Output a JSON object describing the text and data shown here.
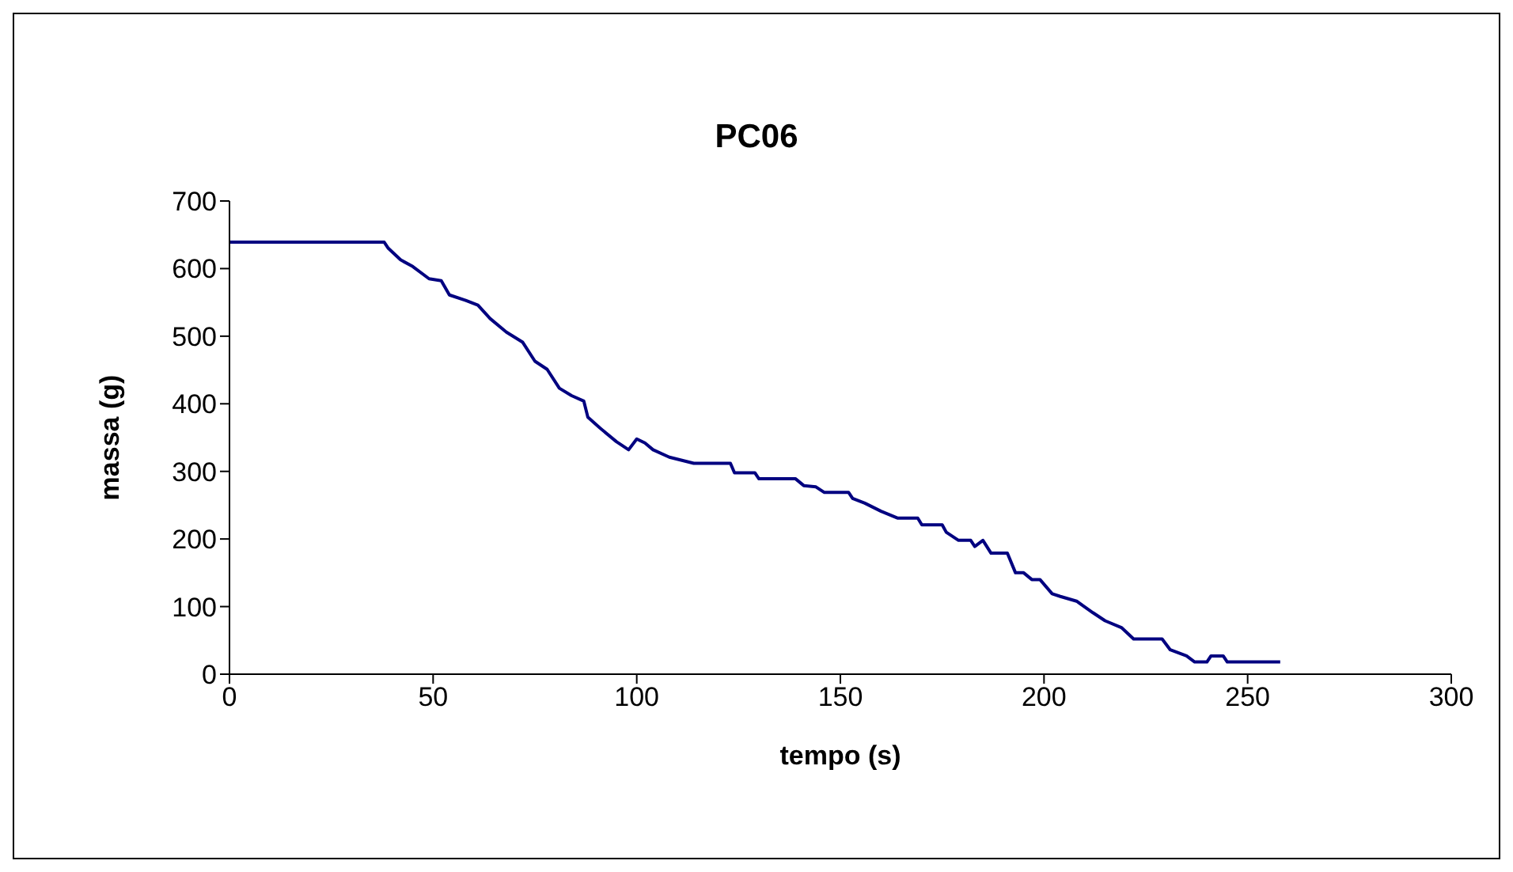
{
  "chart_data": {
    "type": "line",
    "title": "PC06",
    "xlabel": "tempo (s)",
    "ylabel": "massa (g)",
    "x": [
      0,
      38,
      39,
      42,
      45,
      49,
      52,
      54,
      58,
      61,
      64,
      68,
      72,
      75,
      78,
      81,
      84,
      87,
      88,
      91,
      95,
      98,
      100,
      102,
      104,
      108,
      114,
      123,
      124,
      129,
      130,
      139,
      141,
      144,
      146,
      152,
      153,
      156,
      160,
      164,
      169,
      170,
      175,
      176,
      179,
      182,
      183,
      185,
      187,
      191,
      193,
      195,
      197,
      199,
      202,
      204,
      208,
      212,
      215,
      219,
      222,
      229,
      231,
      235,
      237,
      240,
      241,
      244,
      245,
      258
    ],
    "series": [
      {
        "color": "#000080",
        "values": [
          639,
          639,
          630,
          613,
          603,
          585,
          582,
          561,
          553,
          546,
          526,
          506,
          491,
          463,
          451,
          423,
          412,
          404,
          380,
          364,
          344,
          332,
          348,
          342,
          332,
          321,
          312,
          312,
          298,
          298,
          289,
          289,
          279,
          277,
          269,
          269,
          260,
          253,
          241,
          231,
          231,
          221,
          221,
          210,
          198,
          198,
          189,
          198,
          179,
          179,
          150,
          150,
          140,
          140,
          119,
          115,
          108,
          91,
          79,
          69,
          52,
          52,
          36,
          27,
          18,
          18,
          27,
          27,
          18,
          18
        ]
      }
    ],
    "xlim": [
      0,
      300
    ],
    "xticks": [
      0,
      50,
      100,
      150,
      200,
      250,
      300
    ],
    "ylim": [
      0,
      700
    ],
    "yticks": [
      0,
      100,
      200,
      300,
      400,
      500,
      600,
      700
    ],
    "grid": false,
    "marker": "none",
    "line_style": "solid"
  }
}
